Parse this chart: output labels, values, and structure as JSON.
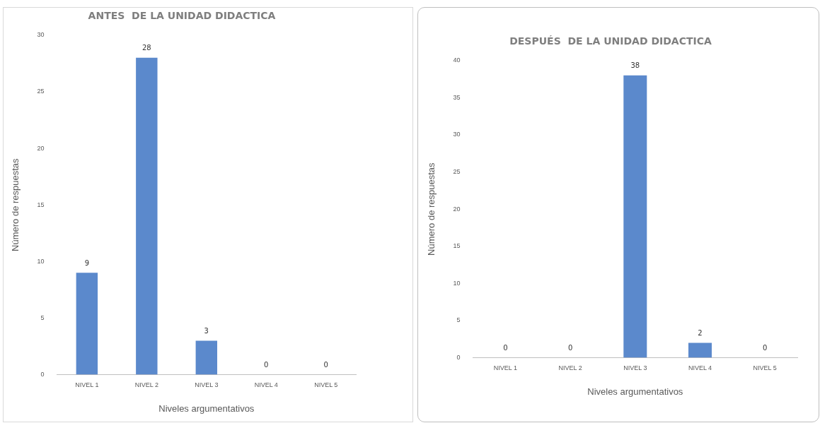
{
  "chart_data": [
    {
      "type": "bar",
      "title": "ANTES  DE LA UNIDAD DIDACTICA",
      "xlabel": "Niveles argumentativos",
      "ylabel": "Número de respuestas",
      "categories": [
        "NIVEL 1",
        "NIVEL 2",
        "NIVEL 3",
        "NIVEL 4",
        "NIVEL 5"
      ],
      "values": [
        9,
        28,
        3,
        0,
        0
      ],
      "color": "#5b89cc",
      "ylim": [
        0,
        30
      ],
      "yticks": [
        0,
        5,
        10,
        15,
        20,
        25,
        30
      ],
      "grid": false,
      "data_labels": true
    },
    {
      "type": "bar",
      "title": "DESPUÉS  DE LA UNIDAD DIDACTICA",
      "xlabel": "Niveles argumentativos",
      "ylabel": "Número de respuestas",
      "categories": [
        "NIVEL 1",
        "NIVEL 2",
        "NIVEL 3",
        "NIVEL 4",
        "NIVEL 5"
      ],
      "values": [
        0,
        0,
        38,
        2,
        0
      ],
      "color": "#5b89cc",
      "ylim": [
        0,
        40
      ],
      "yticks": [
        0,
        5,
        10,
        15,
        20,
        25,
        30,
        35,
        40
      ],
      "grid": false,
      "data_labels": true
    }
  ]
}
